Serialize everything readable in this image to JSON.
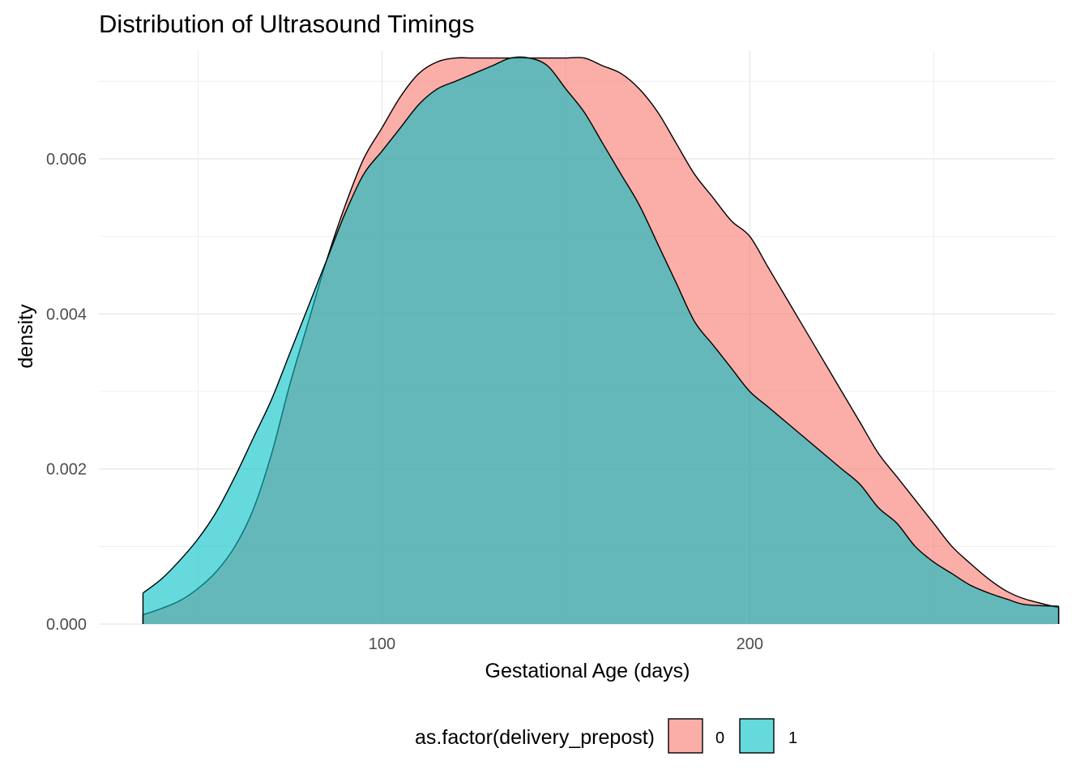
{
  "chart_data": {
    "type": "area",
    "subtype": "density",
    "title": "Distribution of Ultrasound Timings",
    "xlabel": "Gestational Age (days)",
    "ylabel": "density",
    "xlim": [
      23,
      283
    ],
    "ylim": [
      0,
      0.0074
    ],
    "x_ticks": [
      100,
      200
    ],
    "x_tick_labels": [
      "100",
      "200"
    ],
    "y_ticks": [
      0,
      0.002,
      0.004,
      0.006
    ],
    "y_tick_labels": [
      "0.000",
      "0.002",
      "0.004",
      "0.006"
    ],
    "grid": true,
    "legend": {
      "title": "as.factor(delivery_prepost)",
      "position": "bottom"
    },
    "series": [
      {
        "name": "0",
        "color": "#F8766D",
        "x": [
          35,
          40,
          45,
          50,
          55,
          60,
          65,
          70,
          75,
          80,
          85,
          90,
          95,
          100,
          105,
          110,
          115,
          120,
          125,
          130,
          135,
          140,
          145,
          150,
          155,
          160,
          165,
          170,
          175,
          180,
          185,
          190,
          195,
          200,
          205,
          210,
          215,
          220,
          225,
          230,
          235,
          240,
          245,
          250,
          255,
          260,
          265,
          270,
          275,
          284
        ],
        "y": [
          0.00012,
          0.0002,
          0.0003,
          0.00046,
          0.00068,
          0.001,
          0.00148,
          0.0022,
          0.0031,
          0.0039,
          0.0047,
          0.0054,
          0.006,
          0.0064,
          0.0068,
          0.0071,
          0.00725,
          0.0073,
          0.0073,
          0.0073,
          0.0073,
          0.0073,
          0.0073,
          0.0073,
          0.0073,
          0.0072,
          0.0071,
          0.0069,
          0.0066,
          0.0062,
          0.0058,
          0.0055,
          0.0052,
          0.005,
          0.0046,
          0.0042,
          0.0038,
          0.0034,
          0.003,
          0.0026,
          0.0022,
          0.0019,
          0.0016,
          0.0013,
          0.001,
          0.00078,
          0.00058,
          0.00042,
          0.00032,
          0.00021
        ]
      },
      {
        "name": "1",
        "color": "#00BFC4",
        "x": [
          35,
          40,
          45,
          50,
          55,
          60,
          65,
          70,
          75,
          80,
          85,
          90,
          95,
          100,
          105,
          110,
          115,
          120,
          125,
          130,
          135,
          140,
          145,
          150,
          155,
          160,
          165,
          170,
          175,
          180,
          185,
          190,
          195,
          200,
          205,
          210,
          215,
          220,
          225,
          230,
          235,
          240,
          245,
          250,
          255,
          260,
          265,
          270,
          275,
          284
        ],
        "y": [
          0.0004,
          0.00058,
          0.00082,
          0.0011,
          0.00145,
          0.0019,
          0.0024,
          0.0029,
          0.0035,
          0.0041,
          0.0047,
          0.0053,
          0.0058,
          0.0061,
          0.0064,
          0.0067,
          0.0069,
          0.007,
          0.0071,
          0.0072,
          0.0073,
          0.0073,
          0.0072,
          0.0069,
          0.0066,
          0.0062,
          0.0058,
          0.0054,
          0.0049,
          0.0044,
          0.0039,
          0.0036,
          0.0033,
          0.003,
          0.0028,
          0.0026,
          0.0024,
          0.0022,
          0.002,
          0.0018,
          0.0015,
          0.0013,
          0.001,
          0.0008,
          0.00065,
          0.0005,
          0.0004,
          0.00032,
          0.00025,
          0.00023
        ]
      }
    ]
  }
}
